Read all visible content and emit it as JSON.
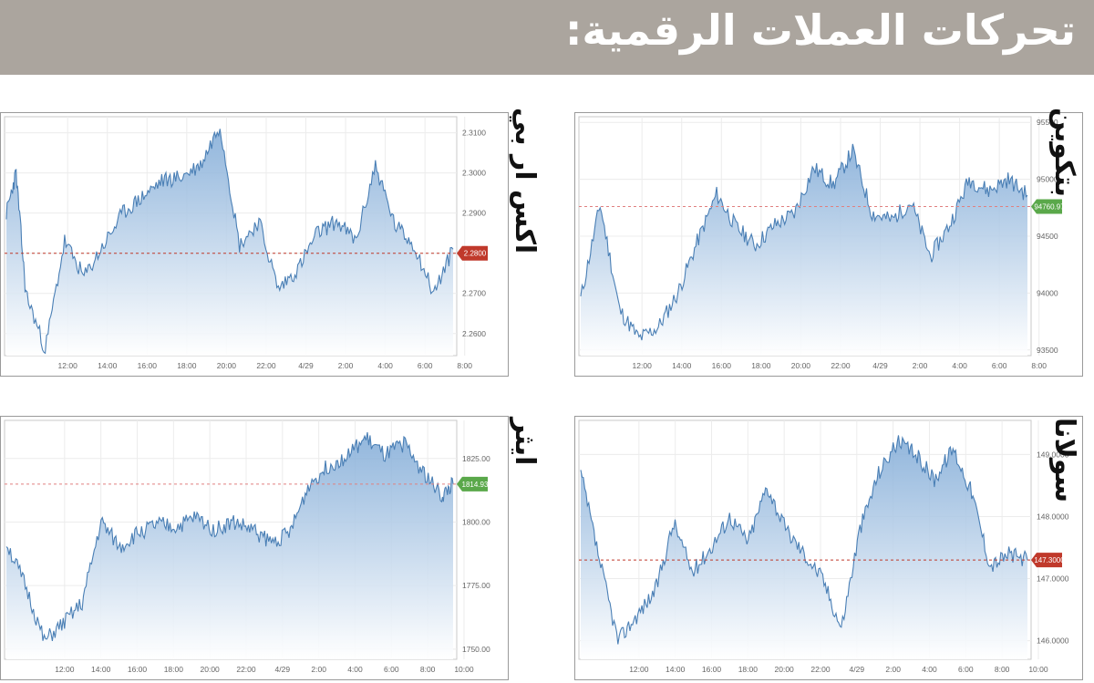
{
  "page_title": "تحركات العملات الرقمية:",
  "chart_data": [
    {
      "id": "bitcoin",
      "type": "area",
      "title": "بتكوين",
      "x_ticks": [
        "12:00",
        "14:00",
        "16:00",
        "18:00",
        "20:00",
        "22:00",
        "4/29",
        "2:00",
        "4:00",
        "6:00",
        "8:00"
      ],
      "y_ticks": [
        "93500",
        "94000",
        "94500",
        "95000",
        "95500"
      ],
      "ylim": [
        93450,
        95550
      ],
      "current_label": "94760.97",
      "current_value": 94760.97,
      "label_color": "#5aa84a",
      "x": [
        0,
        0.5,
        1,
        1.5,
        2,
        2.5,
        3,
        3.5,
        4,
        4.5,
        5,
        5.5,
        6,
        6.5,
        7,
        7.5,
        8,
        8.5,
        9,
        9.5,
        10,
        10.5,
        11,
        11.5
      ],
      "values": [
        93950,
        94780,
        93850,
        93600,
        93700,
        94000,
        94450,
        94870,
        94580,
        94420,
        94600,
        94700,
        95100,
        94950,
        95250,
        94700,
        94640,
        94800,
        94320,
        94600,
        95000,
        94900,
        95000,
        94860
      ],
      "grid": true
    },
    {
      "id": "xrp",
      "type": "area",
      "title": "اكس ار بي",
      "x_ticks": [
        "12:00",
        "14:00",
        "16:00",
        "18:00",
        "20:00",
        "22:00",
        "4/29",
        "2:00",
        "4:00",
        "6:00",
        "8:00"
      ],
      "y_ticks": [
        "2.2600",
        "2.2700",
        "2.2800",
        "2.2900",
        "2.3000",
        "2.3100"
      ],
      "ylim": [
        2.2545,
        2.314
      ],
      "current_label": "2.2800",
      "current_value": 2.28,
      "label_color": "#c0392b",
      "x": [
        0,
        0.25,
        0.5,
        1,
        1.5,
        2,
        2.5,
        3,
        3.5,
        4,
        4.5,
        5,
        5.5,
        6,
        6.5,
        7,
        7.5,
        8,
        8.5,
        9,
        9.5,
        10,
        10.5,
        11,
        11.5
      ],
      "values": [
        2.29,
        2.3,
        2.27,
        2.256,
        2.283,
        2.274,
        2.282,
        2.29,
        2.294,
        2.298,
        2.299,
        2.302,
        2.312,
        2.282,
        2.288,
        2.271,
        2.276,
        2.285,
        2.288,
        2.283,
        2.302,
        2.287,
        2.282,
        2.27,
        2.281
      ],
      "grid": true
    },
    {
      "id": "solana",
      "type": "area",
      "title": "سولانا",
      "x_ticks": [
        "12:00",
        "14:00",
        "16:00",
        "18:00",
        "20:00",
        "22:00",
        "4/29",
        "2:00",
        "4:00",
        "6:00",
        "8:00",
        "10:00"
      ],
      "y_ticks": [
        "146.0000",
        "147.0000",
        "148.0000",
        "149.0000"
      ],
      "ylim": [
        145.7,
        149.55
      ],
      "current_label": "147.3000",
      "current_value": 147.3,
      "label_color": "#c0392b",
      "x": [
        0,
        0.5,
        1,
        1.5,
        2,
        2.5,
        3,
        3.5,
        4,
        4.5,
        5,
        5.5,
        6,
        6.5,
        7,
        7.5,
        8,
        8.5,
        9,
        9.5,
        10,
        10.5,
        11,
        11.5,
        12
      ],
      "values": [
        148.7,
        147.3,
        146.0,
        146.4,
        146.8,
        147.9,
        147.1,
        147.5,
        148.0,
        147.6,
        148.5,
        147.8,
        147.4,
        147.0,
        146.2,
        147.8,
        148.7,
        149.2,
        149.0,
        148.6,
        149.1,
        148.4,
        147.2,
        147.4,
        147.3
      ],
      "grid": true
    },
    {
      "id": "ether",
      "type": "area",
      "title": "ايثر",
      "x_ticks": [
        "12:00",
        "14:00",
        "16:00",
        "18:00",
        "20:00",
        "22:00",
        "4/29",
        "2:00",
        "4:00",
        "6:00",
        "8:00",
        "10:00"
      ],
      "y_ticks": [
        "1750.00",
        "1775.00",
        "1800.00",
        "1825.00"
      ],
      "ylim": [
        1746,
        1840
      ],
      "current_label": "1814.93",
      "current_value": 1814.93,
      "label_color": "#5aa84a",
      "x": [
        0,
        0.5,
        1,
        1.5,
        2,
        2.5,
        3,
        3.5,
        4,
        4.5,
        5,
        5.5,
        6,
        6.5,
        7,
        7.5,
        8,
        8.5,
        9,
        9.5,
        10,
        10.5,
        11,
        11.5,
        11.8
      ],
      "values": [
        1792,
        1775,
        1753,
        1760,
        1768,
        1800,
        1790,
        1796,
        1799,
        1798,
        1802,
        1797,
        1800,
        1797,
        1792,
        1796,
        1815,
        1822,
        1826,
        1833,
        1826,
        1831,
        1820,
        1810,
        1815
      ],
      "grid": true
    }
  ]
}
